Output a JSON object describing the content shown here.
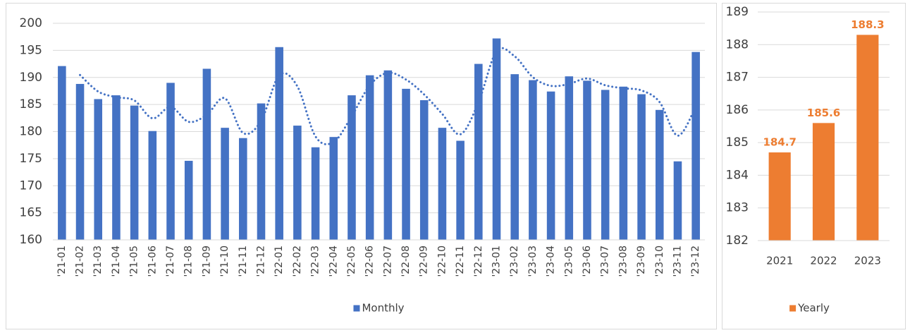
{
  "chart_data": [
    {
      "type": "bar",
      "categories": [
        "'21-01",
        "'21-02",
        "'21-03",
        "'21-04",
        "'21-05",
        "'21-06",
        "'21-07",
        "'21-08",
        "'21-09",
        "'21-10",
        "'21-11",
        "'21-12",
        "'22-01",
        "'22-02",
        "'22-03",
        "'22-04",
        "'22-05",
        "'22-06",
        "'22-07",
        "'22-08",
        "'22-09",
        "'22-10",
        "'22-11",
        "'22-12",
        "'23-01",
        "'23-02",
        "'23-03",
        "'23-04",
        "'23-05",
        "'23-06",
        "'23-07",
        "'23-08",
        "'23-09",
        "'23-10",
        "'23-11",
        "'23-12"
      ],
      "series": [
        {
          "name": "Monthly",
          "color": "#4472c4",
          "values": [
            192.1,
            188.8,
            186.0,
            186.7,
            184.8,
            180.1,
            189.0,
            174.6,
            191.6,
            180.7,
            178.8,
            185.2,
            195.6,
            181.1,
            177.1,
            179.0,
            186.7,
            190.4,
            191.3,
            187.9,
            185.8,
            180.7,
            178.3,
            192.5,
            197.2,
            190.6,
            189.5,
            187.4,
            190.2,
            189.4,
            187.7,
            188.3,
            186.9,
            184.0,
            174.5,
            194.7
          ]
        }
      ],
      "ylim": [
        160,
        200
      ],
      "yticks": [
        160,
        165,
        170,
        175,
        180,
        185,
        190,
        195,
        200
      ],
      "grid": true,
      "trendline": {
        "type": "moving_average",
        "period": 2
      },
      "legend": "bottom"
    },
    {
      "type": "bar",
      "categories": [
        "2021",
        "2022",
        "2023"
      ],
      "series": [
        {
          "name": "Yearly",
          "color": "#ed7d31",
          "values": [
            184.7,
            185.6,
            188.3
          ]
        }
      ],
      "ylim": [
        182,
        189
      ],
      "yticks": [
        182,
        183,
        184,
        185,
        186,
        187,
        188,
        189
      ],
      "grid": true,
      "data_labels": true,
      "legend": "bottom"
    }
  ]
}
